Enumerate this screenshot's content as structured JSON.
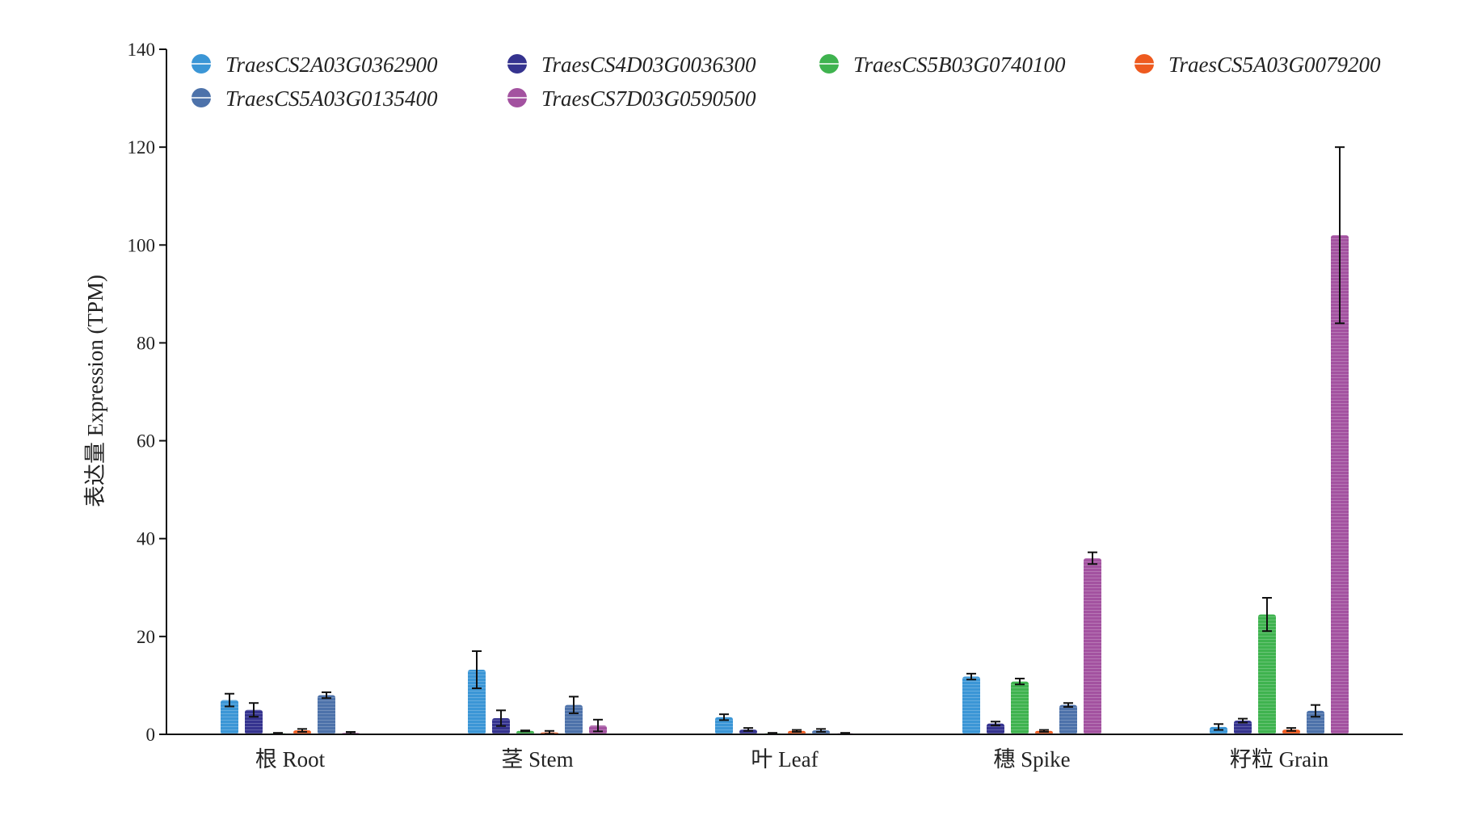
{
  "chart_data": {
    "type": "bar",
    "title": "",
    "ylabel": "表达量 Expression (TPM)",
    "xlabel": "",
    "ylim": [
      0,
      140
    ],
    "yticks": [
      0,
      20,
      40,
      60,
      80,
      100,
      120,
      140
    ],
    "categories": [
      "根 Root",
      "茎 Stem",
      "叶 Leaf",
      "穗 Spike",
      "籽粒 Grain"
    ],
    "legend_position": "top",
    "series": [
      {
        "name": "TraesCS2A03G0362900",
        "color": "#3b96d6",
        "values": [
          7.0,
          13.2,
          3.5,
          11.8,
          1.5
        ],
        "errors": [
          1.3,
          3.8,
          0.6,
          0.6,
          0.6
        ]
      },
      {
        "name": "TraesCS4D03G0036300",
        "color": "#35338f",
        "values": [
          5.0,
          3.3,
          1.0,
          2.2,
          2.8
        ],
        "errors": [
          1.4,
          1.6,
          0.3,
          0.4,
          0.4
        ]
      },
      {
        "name": "TraesCS5B03G0740100",
        "color": "#3fb34f",
        "values": [
          0.2,
          0.7,
          0.2,
          10.8,
          24.5
        ],
        "errors": [
          0.1,
          0.1,
          0.1,
          0.6,
          3.4
        ]
      },
      {
        "name": "TraesCS5A03G0079200",
        "color": "#ee5a1f",
        "values": [
          0.8,
          0.4,
          0.7,
          0.7,
          1.0
        ],
        "errors": [
          0.3,
          0.3,
          0.2,
          0.2,
          0.3
        ]
      },
      {
        "name": "TraesCS5A03G0135400",
        "color": "#4d72aa",
        "values": [
          8.0,
          6.0,
          0.8,
          6.0,
          4.8
        ],
        "errors": [
          0.6,
          1.7,
          0.3,
          0.4,
          1.2
        ]
      },
      {
        "name": "TraesCS7D03G0590500",
        "color": "#a352a0",
        "values": [
          0.3,
          1.8,
          0.2,
          36.0,
          102.0
        ],
        "errors": [
          0.2,
          1.2,
          0.1,
          1.2,
          18.0
        ]
      }
    ]
  }
}
